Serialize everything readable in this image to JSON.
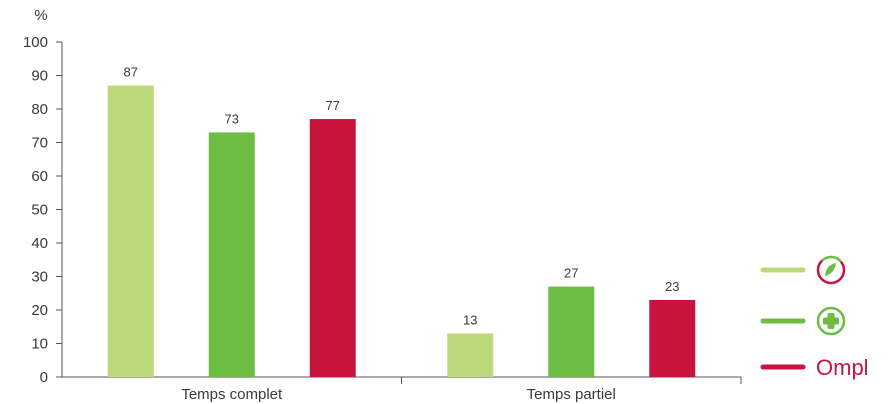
{
  "chart_data": {
    "type": "bar",
    "y_unit": "%",
    "ylim": [
      0,
      100
    ],
    "yticks": [
      0,
      10,
      20,
      30,
      40,
      50,
      60,
      70,
      80,
      90,
      100
    ],
    "categories": [
      "Temps complet",
      "Temps partiel"
    ],
    "series": [
      {
        "values": [
          87,
          13
        ],
        "color": "#bcd97a",
        "legend_icon": "leaf-circle-icon"
      },
      {
        "values": [
          73,
          27
        ],
        "color": "#6dbd45",
        "legend_icon": "plus-circle-icon"
      },
      {
        "name": "Ompl",
        "values": [
          77,
          23
        ],
        "color": "#c8143f",
        "legend_icon": "ompl-logo"
      }
    ],
    "grid": false,
    "legend_position": "right",
    "data_labels": true
  }
}
